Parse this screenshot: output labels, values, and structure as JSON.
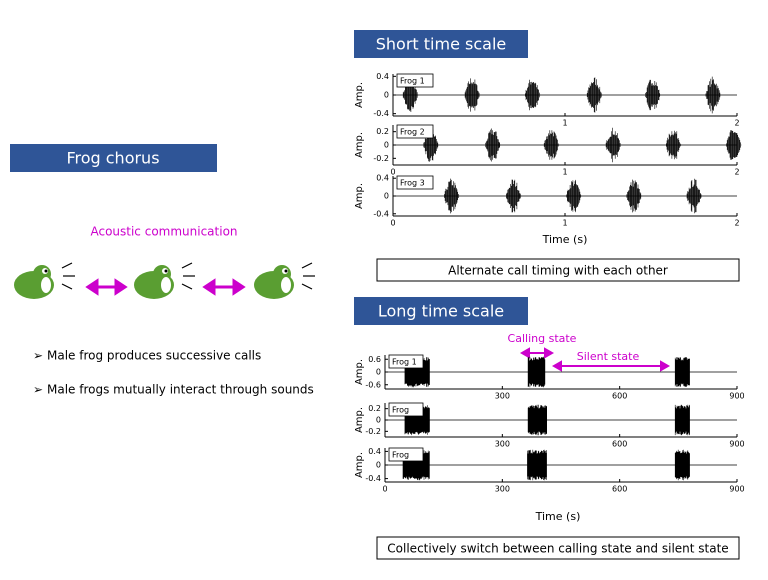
{
  "left": {
    "title": "Frog chorus",
    "subtitle": "Acoustic communication",
    "bullets": [
      "Male frog produces successive calls",
      "Male frogs mutually interact through sounds"
    ]
  },
  "short": {
    "title": "Short time scale",
    "caption": "Alternate call timing with each other",
    "xlabel": "Time (s)",
    "ylabel": "Amp.",
    "panels": [
      {
        "name": "Frog 1",
        "xlim": [
          0,
          2
        ],
        "xticks": [
          1,
          2
        ],
        "ylim": [
          -0.45,
          0.45
        ],
        "yticks": [
          -0.4,
          0,
          0.4
        ],
        "calls": [
          0.1,
          0.46,
          0.81,
          1.17,
          1.51,
          1.86
        ]
      },
      {
        "name": "Frog 2",
        "xlim": [
          0,
          2
        ],
        "xticks": [
          0,
          1,
          2
        ],
        "ylim": [
          -0.3,
          0.3
        ],
        "yticks": [
          -0.2,
          0,
          0.2
        ],
        "calls": [
          0.22,
          0.58,
          0.92,
          1.28,
          1.63,
          1.98
        ]
      },
      {
        "name": "Frog 3",
        "xlim": [
          0,
          2
        ],
        "xticks": [
          0,
          1,
          2
        ],
        "ylim": [
          -0.45,
          0.45
        ],
        "yticks": [
          -0.4,
          0,
          0.4
        ],
        "calls": [
          0.34,
          0.7,
          1.05,
          1.4,
          1.75
        ]
      }
    ]
  },
  "long": {
    "title": "Long time scale",
    "caption": "Collectively switch between calling state and silent state",
    "xlabel": "Time (s)",
    "ylabel": "Amp.",
    "annotations": [
      "Calling state",
      "Silent state"
    ],
    "panels": [
      {
        "name": "Frog 1",
        "xlim": [
          0,
          900
        ],
        "xticks": [
          300,
          600,
          900
        ],
        "ylim": [
          -0.8,
          0.8
        ],
        "yticks": [
          -0.6,
          0,
          0.6
        ],
        "calls": [
          [
            51,
            115
          ],
          [
            366,
            409
          ],
          [
            742,
            780
          ]
        ]
      },
      {
        "name": "Frog",
        "xlim": [
          0,
          900
        ],
        "xticks": [
          300,
          600,
          900
        ],
        "ylim": [
          -0.3,
          0.3
        ],
        "yticks": [
          -0.2,
          0,
          0.2
        ],
        "calls": [
          [
            51,
            115
          ],
          [
            366,
            414
          ],
          [
            742,
            780
          ]
        ]
      },
      {
        "name": "Frog",
        "xlim": [
          0,
          900
        ],
        "xticks": [
          0,
          300,
          600,
          900
        ],
        "ylim": [
          -0.5,
          0.5
        ],
        "yticks": [
          -0.4,
          0,
          0.4
        ],
        "calls": [
          [
            46,
            115
          ],
          [
            364,
            414
          ],
          [
            742,
            780
          ]
        ]
      }
    ]
  }
}
